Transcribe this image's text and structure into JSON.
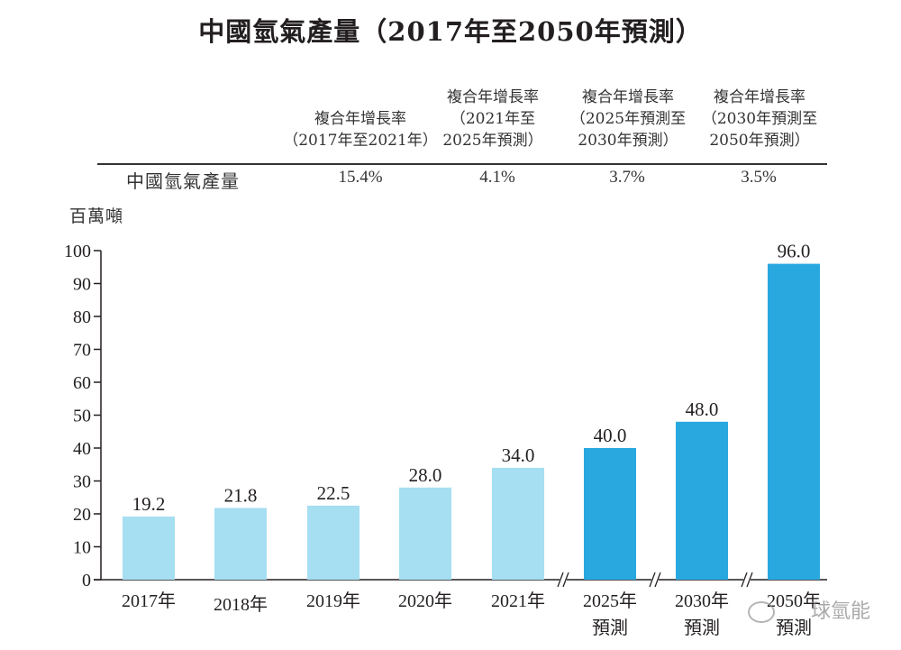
{
  "chart_data": {
    "type": "bar",
    "title": "中國氫氣產量（2017年至2050年預測）",
    "ylabel": "百萬噸",
    "xlabel": "",
    "ylim": [
      0,
      100
    ],
    "yticks": [
      0,
      10,
      20,
      30,
      40,
      50,
      60,
      70,
      80,
      90,
      100
    ],
    "grid": false,
    "categories": [
      {
        "line1": "2017年",
        "line2": ""
      },
      {
        "line1": "2018年",
        "line2": ""
      },
      {
        "line1": "2019年",
        "line2": ""
      },
      {
        "line1": "2020年",
        "line2": ""
      },
      {
        "line1": "2021年",
        "line2": ""
      },
      {
        "line1": "2025年",
        "line2": "預測"
      },
      {
        "line1": "2030年",
        "line2": "預測"
      },
      {
        "line1": "2050年",
        "line2": "預測"
      }
    ],
    "values": [
      19.2,
      21.8,
      22.5,
      28.0,
      34.0,
      40.0,
      48.0,
      96.0
    ],
    "value_labels": [
      "19.2",
      "21.8",
      "22.5",
      "28.0",
      "34.0",
      "40.0",
      "48.0",
      "96.0"
    ],
    "forecast": [
      false,
      false,
      false,
      false,
      false,
      true,
      true,
      true
    ],
    "axis_breaks_before_index": [
      5,
      6,
      7
    ],
    "colors": {
      "actual": "#a6def2",
      "forecast": "#29a8e0",
      "axis": "#231f20"
    }
  },
  "cagr_table": {
    "row_label": "中國氫氣產量",
    "columns": [
      {
        "header": [
          "複合年增長率",
          "（2017年至2021年）"
        ],
        "value": "15.4%"
      },
      {
        "header": [
          "複合年增長率",
          "（2021年至",
          "2025年預測）"
        ],
        "value": "4.1%"
      },
      {
        "header": [
          "複合年增長率",
          "（2025年預測至",
          "2030年預測）"
        ],
        "value": "3.7%"
      },
      {
        "header": [
          "複合年增長率",
          "（2030年預測至",
          "2050年預測）"
        ],
        "value": "3.5%"
      }
    ]
  },
  "watermark": {
    "text": "球氫能",
    "icon": "wechat-icon"
  }
}
